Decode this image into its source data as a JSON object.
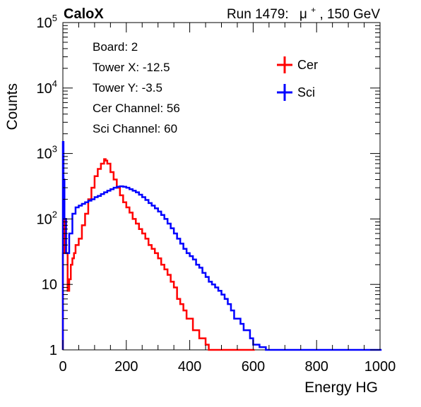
{
  "header": {
    "left_title": "CaloX",
    "right_title_prefix": "Run 1479:",
    "right_title_particle": "μ",
    "right_title_charge": "+",
    "right_title_suffix": ", 150 GeV"
  },
  "info_box": {
    "lines": [
      "Board: 2",
      "Tower X: -12.5",
      "Tower Y: -3.5",
      "Cer Channel: 56",
      "Sci Channel: 60"
    ]
  },
  "colors": {
    "cer": "#ff0000",
    "sci": "#0000ff",
    "axis": "#000000",
    "background": "#ffffff"
  },
  "chart_data": {
    "type": "line",
    "title": "",
    "xlabel": "Energy HG",
    "ylabel": "Counts",
    "xlim": [
      0,
      1000
    ],
    "ylim": [
      1,
      100000
    ],
    "yscale": "log",
    "grid": false,
    "legend_position": "top-right",
    "x_ticks": [
      0,
      200,
      400,
      600,
      800,
      1000
    ],
    "y_ticks": [
      {
        "value": 1,
        "base": "1",
        "exp": ""
      },
      {
        "value": 10,
        "base": "10",
        "exp": ""
      },
      {
        "value": 100,
        "base": "10",
        "exp": "2"
      },
      {
        "value": 1000,
        "base": "10",
        "exp": "3"
      },
      {
        "value": 10000,
        "base": "10",
        "exp": "4"
      },
      {
        "value": 100000,
        "base": "10",
        "exp": "5"
      }
    ],
    "series": [
      {
        "name": "Cer",
        "x": [
          0,
          5,
          10,
          15,
          20,
          25,
          30,
          35,
          40,
          50,
          60,
          70,
          80,
          90,
          100,
          110,
          120,
          130,
          135,
          140,
          150,
          160,
          170,
          180,
          190,
          200,
          210,
          220,
          230,
          240,
          250,
          260,
          270,
          280,
          290,
          300,
          310,
          320,
          330,
          340,
          350,
          360,
          370,
          380,
          390,
          400,
          410,
          420,
          430,
          440,
          450,
          460,
          470,
          480,
          490,
          500,
          510,
          520,
          530,
          540,
          550,
          560,
          570,
          580,
          590,
          600
        ],
        "values": [
          30,
          100,
          30,
          8,
          12,
          20,
          25,
          30,
          40,
          50,
          80,
          120,
          200,
          300,
          450,
          580,
          700,
          820,
          780,
          700,
          520,
          400,
          300,
          230,
          180,
          150,
          125,
          100,
          85,
          70,
          60,
          50,
          40,
          35,
          30,
          25,
          20,
          17,
          14,
          11,
          9,
          6,
          5,
          4,
          3,
          3,
          2,
          2,
          1.5,
          1.5,
          1.2,
          1,
          1,
          1,
          1,
          1,
          1,
          1,
          1,
          1,
          1,
          1,
          1,
          1,
          1,
          1
        ]
      },
      {
        "name": "Sci",
        "x": [
          0,
          2,
          5,
          10,
          20,
          30,
          40,
          50,
          60,
          70,
          80,
          90,
          100,
          110,
          120,
          130,
          140,
          150,
          160,
          170,
          180,
          190,
          200,
          210,
          220,
          230,
          240,
          250,
          260,
          270,
          280,
          290,
          300,
          310,
          320,
          330,
          340,
          350,
          360,
          370,
          380,
          390,
          400,
          410,
          420,
          430,
          440,
          450,
          460,
          470,
          480,
          490,
          500,
          510,
          520,
          530,
          540,
          550,
          560,
          570,
          580,
          590,
          600,
          620,
          640,
          660,
          680,
          700,
          720,
          740,
          760,
          780,
          800,
          820,
          840,
          860,
          880,
          900,
          920,
          940,
          960,
          980,
          1000
        ],
        "values": [
          1500,
          400,
          100,
          30,
          60,
          120,
          150,
          160,
          170,
          180,
          190,
          200,
          215,
          225,
          240,
          255,
          270,
          285,
          300,
          310,
          315,
          310,
          300,
          285,
          270,
          255,
          235,
          215,
          195,
          175,
          160,
          145,
          130,
          115,
          100,
          85,
          72,
          60,
          50,
          42,
          35,
          30,
          27,
          24,
          20,
          18,
          15,
          13,
          11,
          10,
          9,
          8,
          7,
          6,
          5,
          4,
          3,
          3,
          2.5,
          2,
          2,
          1.5,
          1.2,
          1.1,
          1,
          1,
          1,
          1,
          1,
          1,
          1,
          1,
          1,
          1,
          1,
          1,
          1,
          1,
          1,
          1,
          1,
          1,
          1
        ]
      }
    ]
  }
}
